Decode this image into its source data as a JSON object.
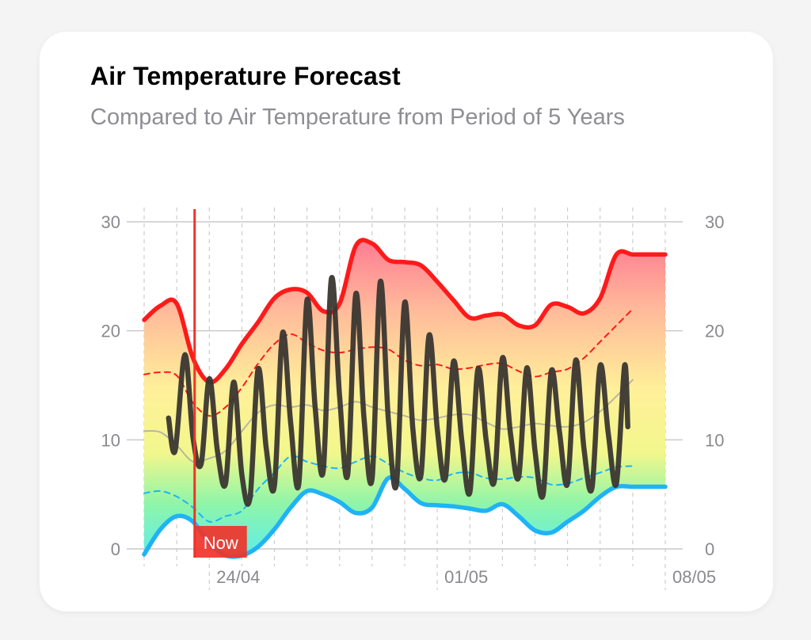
{
  "header": {
    "title": "Air Temperature Forecast",
    "subtitle": "Compared to Air Temperature from Period of 5 Years"
  },
  "colors": {
    "max_line": "#ff1a1a",
    "min_line": "#1fb3f5",
    "forecast_line": "#3a3630",
    "avg_line": "#a8a8a0",
    "now_marker": "#f0332a",
    "gradient_top": "#ff6f86",
    "gradient_bottom": "#56e8d0"
  },
  "chart_data": {
    "type": "line",
    "title": "Air Temperature Forecast",
    "ylim": [
      0,
      30
    ],
    "y_ticks": [
      0,
      10,
      20,
      30
    ],
    "y_tick_labels": [
      "0",
      "10",
      "20",
      "30"
    ],
    "x_tick_labels": [
      {
        "day": 3,
        "label": "24/04"
      },
      {
        "day": 10,
        "label": "01/05"
      },
      {
        "day": 17,
        "label": "08/05"
      }
    ],
    "x_range_days": [
      1,
      17
    ],
    "now_day": 2.55,
    "now_label": "Now",
    "grid": true,
    "legend": "none",
    "series": [
      {
        "key": "max",
        "x": [
          1,
          1.5,
          2,
          2.5,
          3,
          3.5,
          4,
          4.5,
          5,
          5.5,
          6,
          6.5,
          7,
          7.5,
          8,
          8.5,
          9,
          9.5,
          10,
          10.5,
          11,
          11.5,
          12,
          12.5,
          13,
          13.5,
          14,
          14.5,
          15,
          15.5,
          16,
          16.5,
          17
        ],
        "y": [
          21,
          22.3,
          22.5,
          17.5,
          15.3,
          16.5,
          18.8,
          20.8,
          23.0,
          23.8,
          23.5,
          21.8,
          22.5,
          27.8,
          28.0,
          26.5,
          26.3,
          26.0,
          24.5,
          22.8,
          21.2,
          21.4,
          21.5,
          20.5,
          20.5,
          22.4,
          22.2,
          21.6,
          23.0,
          27.0,
          27.0,
          27.0,
          27.0
        ]
      },
      {
        "key": "min",
        "x": [
          1,
          1.5,
          2,
          2.5,
          3,
          3.5,
          4,
          4.5,
          5,
          5.5,
          6,
          6.5,
          7,
          7.5,
          8,
          8.5,
          9,
          9.5,
          10,
          10.5,
          11,
          11.5,
          12,
          12.5,
          13,
          13.5,
          14,
          14.5,
          15,
          15.5,
          16,
          16.5,
          17
        ],
        "y": [
          -0.5,
          1.8,
          3.0,
          2.5,
          0.5,
          -0.6,
          -0.6,
          0.2,
          1.8,
          3.8,
          5.3,
          5.0,
          4.3,
          3.3,
          3.8,
          6.5,
          5.5,
          4.2,
          4.0,
          3.9,
          3.7,
          3.5,
          4.1,
          3.0,
          1.7,
          1.5,
          2.5,
          3.5,
          4.8,
          5.7,
          5.7,
          5.7,
          5.7
        ]
      },
      {
        "key": "avg_max",
        "x": [
          1,
          1.5,
          2,
          2.5,
          3,
          3.5,
          4,
          4.5,
          5,
          5.5,
          6,
          6.5,
          7,
          7.5,
          8,
          8.5,
          9,
          9.5,
          10,
          10.5,
          11,
          11.5,
          12,
          12.5,
          13,
          13.5,
          14,
          14.5,
          15,
          15.5,
          16
        ],
        "y": [
          16,
          16.2,
          15.9,
          13.4,
          12.2,
          13.0,
          14.8,
          17.0,
          18.8,
          19.7,
          18.9,
          18.2,
          18.0,
          18.3,
          18.5,
          18.3,
          17.3,
          16.8,
          16.9,
          16.5,
          16.6,
          16.9,
          17.0,
          16.3,
          15.8,
          16.2,
          16.5,
          17.5,
          19.0,
          20.5,
          22.0
        ]
      },
      {
        "key": "avg_min",
        "x": [
          1,
          1.5,
          2,
          2.5,
          3,
          3.5,
          4,
          4.5,
          5,
          5.5,
          6,
          6.5,
          7,
          7.5,
          8,
          8.5,
          9,
          9.5,
          10,
          10.5,
          11,
          11.5,
          12,
          12.5,
          13,
          13.5,
          14,
          14.5,
          15,
          15.5,
          16
        ],
        "y": [
          5.1,
          5.3,
          4.8,
          3.8,
          2.5,
          3.0,
          3.5,
          5.5,
          7.0,
          8.5,
          8.0,
          7.6,
          7.4,
          8.0,
          8.5,
          7.8,
          7.0,
          6.5,
          6.3,
          6.9,
          7.0,
          6.5,
          6.4,
          6.6,
          6.5,
          5.9,
          6.0,
          6.5,
          7.0,
          7.5,
          7.6
        ]
      },
      {
        "key": "avg",
        "x": [
          1,
          1.5,
          2,
          2.5,
          3,
          3.5,
          4,
          4.5,
          5,
          5.5,
          6,
          6.5,
          7,
          7.5,
          8,
          8.5,
          9,
          9.5,
          10,
          10.5,
          11,
          11.5,
          12,
          12.5,
          13,
          13.5,
          14,
          14.5,
          15,
          15.5,
          16
        ],
        "y": [
          10.8,
          10.7,
          9.5,
          8.0,
          8.3,
          9.0,
          10.8,
          12.5,
          13.2,
          13.0,
          13.2,
          12.7,
          13.0,
          13.5,
          13.0,
          12.6,
          12.2,
          11.8,
          12.0,
          12.3,
          12.3,
          11.6,
          11.0,
          11.2,
          11.5,
          11.3,
          11.2,
          11.6,
          12.6,
          14.0,
          15.5
        ]
      },
      {
        "key": "forecast",
        "x": [
          1.75,
          1.95,
          2.25,
          2.5,
          2.75,
          3.0,
          3.25,
          3.5,
          3.75,
          4.0,
          4.25,
          4.5,
          4.75,
          5.0,
          5.25,
          5.5,
          5.75,
          6.0,
          6.25,
          6.5,
          6.75,
          7.0,
          7.25,
          7.5,
          7.75,
          8.0,
          8.25,
          8.5,
          8.75,
          9.0,
          9.25,
          9.5,
          9.75,
          10.0,
          10.25,
          10.5,
          10.75,
          11.0,
          11.25,
          11.5,
          11.75,
          12.0,
          12.25,
          12.5,
          12.75,
          13.0,
          13.25,
          13.5,
          13.75,
          14.0,
          14.25,
          14.5,
          14.75,
          15.0,
          15.25,
          15.5,
          15.75,
          15.85
        ],
        "y": [
          12.0,
          9.0,
          17.8,
          10.2,
          7.8,
          15.6,
          9.0,
          6.0,
          15.3,
          6.8,
          4.7,
          16.5,
          9.2,
          5.8,
          19.8,
          11.5,
          6.0,
          22.8,
          13.0,
          7.2,
          24.8,
          14.0,
          6.8,
          23.4,
          12.0,
          6.5,
          24.5,
          11.8,
          6.0,
          22.6,
          11.0,
          6.8,
          19.6,
          11.0,
          6.5,
          17.2,
          10.0,
          5.2,
          16.5,
          10.0,
          6.2,
          17.5,
          10.5,
          6.6,
          16.6,
          9.0,
          5.0,
          16.3,
          10.8,
          6.0,
          17.3,
          9.3,
          5.6,
          16.8,
          10.6,
          6.0,
          16.8,
          11.2
        ]
      }
    ]
  }
}
